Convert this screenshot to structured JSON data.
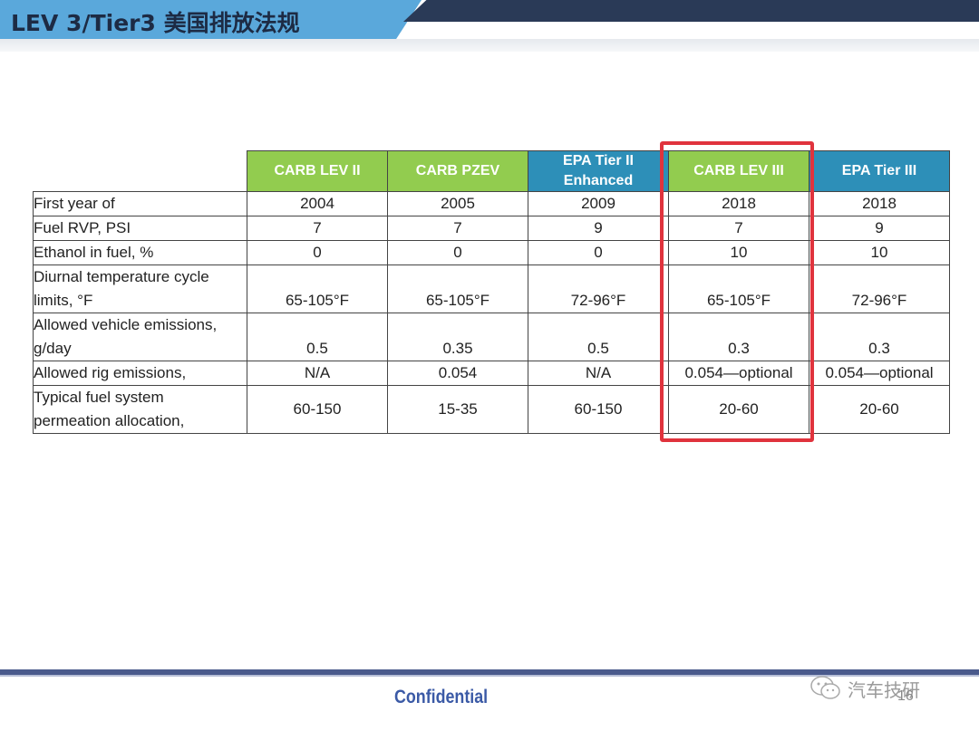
{
  "slide": {
    "title": "LEV 3/Tier3 美国排放法规",
    "footer": "Confidential",
    "page_number": "16",
    "watermark": "汽车技研"
  },
  "table": {
    "columns": [
      {
        "label_line1": "CARB LEV II",
        "label_line2": "",
        "color": "#92cc4f"
      },
      {
        "label_line1": "CARB PZEV",
        "label_line2": "",
        "color": "#92cc4f"
      },
      {
        "label_line1": "EPA Tier II",
        "label_line2": "Enhanced",
        "color": "#2d8fb8"
      },
      {
        "label_line1": "CARB LEV III",
        "label_line2": "",
        "color": "#92cc4f"
      },
      {
        "label_line1": "EPA Tier III",
        "label_line2": "",
        "color": "#2d8fb8"
      }
    ],
    "rows": [
      {
        "label_line1": "First year of",
        "label_line2": "",
        "values": [
          "2004",
          "2005",
          "2009",
          "2018",
          "2018"
        ]
      },
      {
        "label_line1": "Fuel RVP, PSI",
        "label_line2": "",
        "values": [
          "7",
          "7",
          "9",
          "7",
          "9"
        ]
      },
      {
        "label_line1": "Ethanol in fuel, %",
        "label_line2": "",
        "values": [
          "0",
          "0",
          "0",
          "10",
          "10"
        ]
      },
      {
        "label_line1": "Diurnal temperature cycle",
        "label_line2": "limits, °F",
        "values": [
          "65-105°F",
          "65-105°F",
          "72-96°F",
          "65-105°F",
          "72-96°F"
        ]
      },
      {
        "label_line1": "Allowed vehicle emissions,",
        "label_line2": "g/day",
        "values": [
          "0.5",
          "0.35",
          "0.5",
          "0.3",
          "0.3"
        ]
      },
      {
        "label_line1": "Allowed rig emissions,",
        "label_line2": "",
        "values": [
          "N/A",
          "0.054",
          "N/A",
          "0.054—optional",
          "0.054—optional"
        ]
      },
      {
        "label_line1": "Typical fuel system",
        "label_line2": "permeation allocation,",
        "values": [
          "60-150",
          "15-35",
          "60-150",
          "20-60",
          "20-60"
        ]
      }
    ]
  },
  "colors": {
    "highlight": "#e0333d",
    "title_band": "#5aa8db",
    "confidential": "#3b5aa6"
  }
}
